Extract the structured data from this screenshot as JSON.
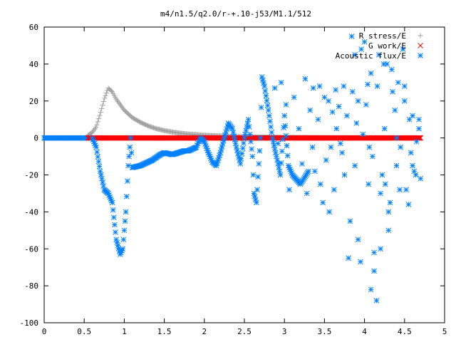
{
  "chart_data": {
    "type": "scatter",
    "title": "m4/n1.5/q2.0/r-+.10-j53/M1.1/512",
    "xlabel": "",
    "ylabel": "",
    "xlim": [
      0,
      5
    ],
    "ylim": [
      -100,
      60
    ],
    "xticks": [
      0,
      0.5,
      1,
      1.5,
      2,
      2.5,
      3,
      3.5,
      4,
      4.5,
      5
    ],
    "yticks": [
      -100,
      -80,
      -60,
      -40,
      -20,
      0,
      20,
      40,
      60
    ],
    "xtick_labels": [
      "0",
      "0.5",
      "1",
      "1.5",
      "2",
      "2.5",
      "3",
      "3.5",
      "4",
      "4.5",
      "5"
    ],
    "ytick_labels": [
      "-100",
      "-80",
      "-60",
      "-40",
      "-20",
      "0",
      "20",
      "40",
      "60"
    ],
    "grid": false,
    "legend_position": "top-right",
    "series": [
      {
        "name": "R stress/E",
        "marker": "plus",
        "color": "#a0a0a0",
        "key_x": [
          0.0,
          0.1,
          0.2,
          0.3,
          0.4,
          0.5,
          0.55,
          0.6,
          0.65,
          0.7,
          0.75,
          0.8,
          0.85,
          0.9,
          1.0,
          1.1,
          1.2,
          1.3,
          1.4,
          1.5,
          1.6,
          1.7,
          1.8,
          1.9,
          2.0,
          2.1,
          2.2,
          2.3,
          2.5,
          3.0,
          3.5,
          4.0,
          4.5,
          4.7
        ],
        "key_y": [
          0,
          0,
          0,
          0,
          0,
          0.5,
          1.5,
          3,
          6,
          13,
          21,
          27,
          25,
          21,
          15,
          11,
          8.5,
          6.5,
          5,
          4,
          3.2,
          2.6,
          2.1,
          1.8,
          1.5,
          1.3,
          1.1,
          0.9,
          0.6,
          0.3,
          0.15,
          0.08,
          0.04,
          0.03
        ]
      },
      {
        "name": "G work/E",
        "marker": "cross",
        "color": "#ff0000",
        "key_x": [
          0.55,
          4.7
        ],
        "key_y": [
          0,
          0
        ]
      },
      {
        "name": "Acoustic flux/E",
        "marker": "star",
        "color": "#0080ff",
        "key_x": [
          0.0,
          0.5,
          0.6,
          0.65,
          0.7,
          0.75,
          0.8,
          0.85,
          0.9,
          0.95,
          0.98,
          1.02,
          1.05,
          1.08,
          1.1,
          1.2,
          1.35,
          1.45,
          1.5,
          1.6,
          1.75,
          1.8,
          1.9,
          1.95,
          2.0,
          2.05,
          2.1,
          2.15,
          2.2,
          2.25,
          2.3,
          2.35,
          2.4,
          2.45,
          2.5,
          2.55,
          2.6,
          2.62,
          2.65,
          2.7,
          2.72,
          2.75,
          2.8,
          2.85,
          2.9,
          2.95,
          3.0,
          3.05,
          3.1,
          3.2,
          3.3
        ],
        "key_y": [
          0,
          0,
          0,
          -5,
          -18,
          -28,
          -30,
          -35,
          -55,
          -63,
          -60,
          -40,
          -15,
          0,
          -16,
          -15,
          -12,
          -9,
          -8,
          -9,
          -7,
          -7,
          -5,
          0,
          -2,
          -8,
          -13,
          -15,
          -8,
          0,
          8,
          5,
          -5,
          -14,
          0,
          10,
          -10,
          -30,
          -35,
          0,
          33,
          28,
          15,
          0,
          -10,
          -20,
          12,
          -15,
          -20,
          -25,
          -18
        ]
      }
    ],
    "scatter_points": [
      [
        3.35,
        -5
      ],
      [
        3.38,
        -18
      ],
      [
        3.42,
        10
      ],
      [
        3.45,
        -25
      ],
      [
        3.48,
        -35
      ],
      [
        3.52,
        -12
      ],
      [
        3.55,
        20
      ],
      [
        3.58,
        -5
      ],
      [
        3.62,
        -28
      ],
      [
        3.65,
        5
      ],
      [
        3.68,
        17
      ],
      [
        3.72,
        -8
      ],
      [
        3.75,
        -20
      ],
      [
        3.78,
        12
      ],
      [
        3.82,
        -45
      ],
      [
        3.85,
        25
      ],
      [
        3.88,
        -15
      ],
      [
        3.9,
        8
      ],
      [
        3.92,
        -55
      ],
      [
        3.95,
        -67
      ],
      [
        3.98,
        2
      ],
      [
        4.02,
        18
      ],
      [
        4.05,
        -25
      ],
      [
        4.08,
        35
      ],
      [
        4.1,
        -10
      ],
      [
        4.12,
        -72
      ],
      [
        4.15,
        -88
      ],
      [
        4.18,
        45
      ],
      [
        4.2,
        -30
      ],
      [
        4.22,
        -20
      ],
      [
        4.25,
        5
      ],
      [
        4.28,
        40
      ],
      [
        4.3,
        -50
      ],
      [
        4.32,
        -35
      ],
      [
        4.35,
        25
      ],
      [
        4.38,
        15
      ],
      [
        4.4,
        -15
      ],
      [
        4.42,
        30
      ],
      [
        4.45,
        -5
      ],
      [
        4.48,
        48
      ],
      [
        4.5,
        20
      ],
      [
        4.52,
        -28
      ],
      [
        4.55,
        -36
      ],
      [
        4.58,
        -8
      ],
      [
        4.6,
        12
      ],
      [
        4.62,
        -18
      ],
      [
        4.65,
        -2
      ],
      [
        4.68,
        10
      ],
      [
        4.7,
        -22
      ],
      [
        2.88,
        27
      ],
      [
        2.92,
        -3
      ],
      [
        2.96,
        30
      ],
      [
        3.02,
        18
      ],
      [
        3.06,
        -28
      ],
      [
        3.12,
        22
      ],
      [
        3.18,
        5
      ],
      [
        3.22,
        -14
      ],
      [
        3.26,
        32
      ],
      [
        3.28,
        -30
      ],
      [
        3.32,
        15
      ],
      [
        3.36,
        27
      ],
      [
        3.44,
        28
      ],
      [
        3.5,
        22
      ],
      [
        3.56,
        -40
      ],
      [
        3.6,
        14
      ],
      [
        3.64,
        26
      ],
      [
        3.7,
        -3
      ],
      [
        3.74,
        28
      ],
      [
        3.8,
        -65
      ],
      [
        3.84,
        55
      ],
      [
        3.88,
        45
      ],
      [
        3.92,
        20
      ],
      [
        3.96,
        48
      ],
      [
        4.0,
        52
      ],
      [
        4.04,
        29
      ],
      [
        4.06,
        -5
      ],
      [
        4.08,
        -82
      ],
      [
        4.12,
        -62
      ],
      [
        4.16,
        28
      ],
      [
        4.2,
        -60
      ],
      [
        4.24,
        40
      ],
      [
        4.26,
        -25
      ],
      [
        4.3,
        -40
      ],
      [
        4.34,
        37
      ],
      [
        4.4,
        0
      ],
      [
        4.44,
        -28
      ],
      [
        4.5,
        28
      ],
      [
        4.56,
        10
      ],
      [
        4.6,
        -15
      ],
      [
        4.64,
        -20
      ],
      [
        4.68,
        5
      ]
    ]
  }
}
